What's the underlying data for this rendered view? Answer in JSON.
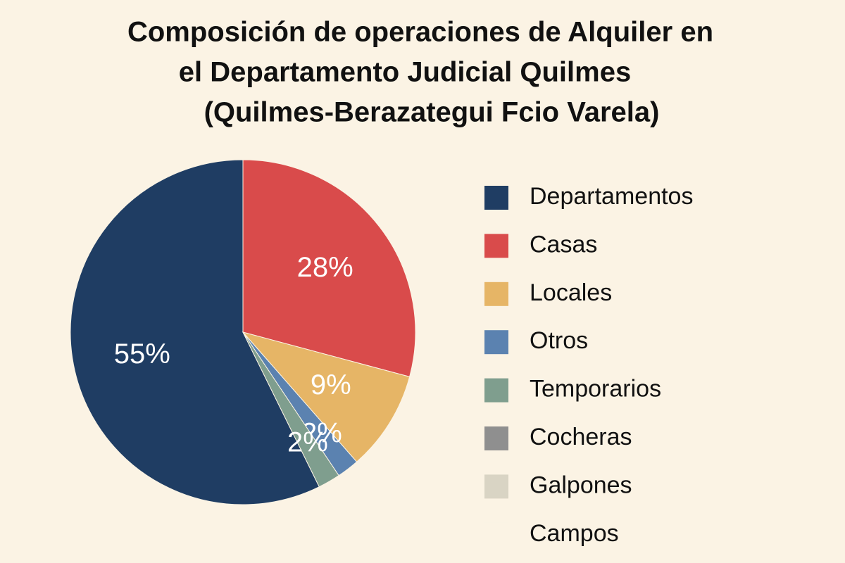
{
  "chart_data": {
    "type": "pie",
    "title": [
      "Composición de operaciones de Alquiler en",
      "el Departamento Judicial Quilmes",
      "(Quilmes-Berazategui Fcio Varela)"
    ],
    "categories": [
      "Departamentos",
      "Casas",
      "Locales",
      "Otros",
      "Temporarios",
      "Cocheras",
      "Galpones",
      "Campos"
    ],
    "values": [
      55,
      28,
      9,
      2,
      2,
      0,
      0,
      0
    ],
    "value_labels": [
      "55%",
      "28%",
      "9%",
      "2%",
      "2%",
      null,
      null,
      null
    ],
    "colors": [
      "#1f3d63",
      "#d94b4b",
      "#e6b566",
      "#5b82b0",
      "#7f9e8e",
      "#8f8f8f",
      "#d9d4c4",
      "#fbf3e4"
    ]
  }
}
